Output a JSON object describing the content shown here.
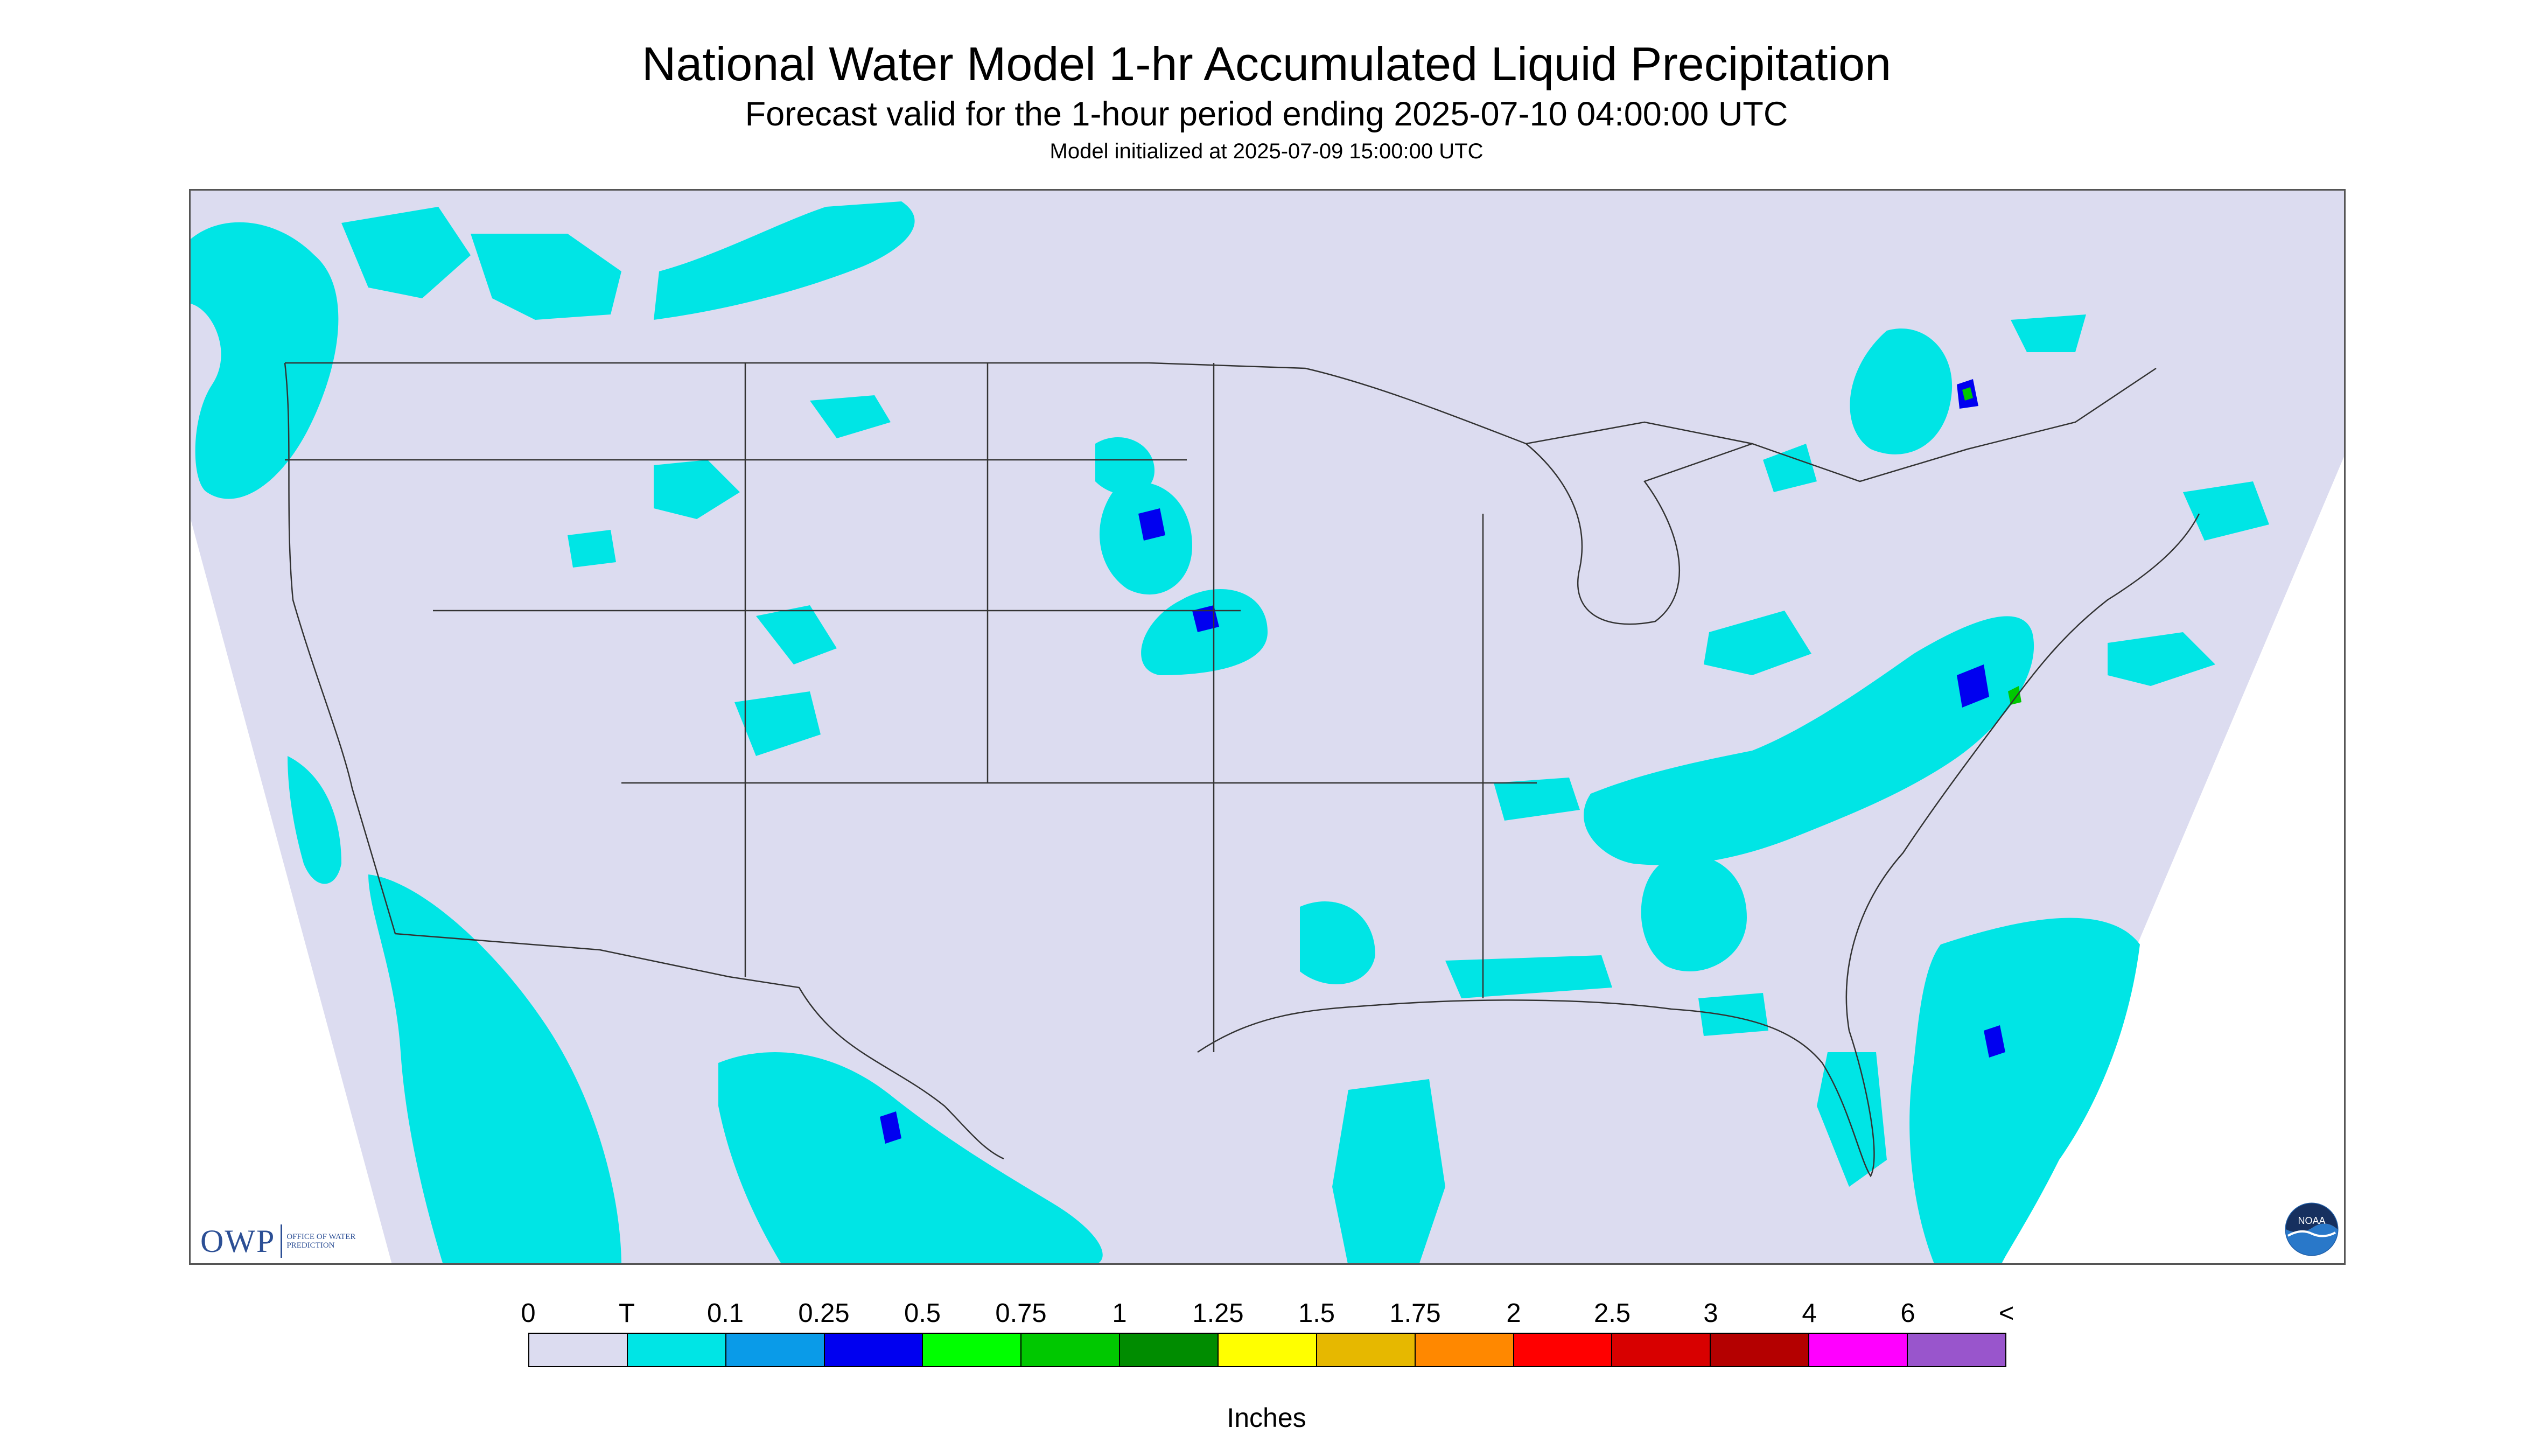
{
  "header": {
    "title": "National Water Model 1-hr Accumulated Liquid Precipitation",
    "subtitle": "Forecast valid for the 1-hour period ending 2025-07-10 04:00:00 UTC",
    "init_line": "Model initialized at 2025-07-09 15:00:00 UTC"
  },
  "logos": {
    "owp_letters": "OWP",
    "owp_subtext": "OFFICE OF WATER PREDICTION",
    "noaa_text": "NOAA"
  },
  "legend": {
    "labels": [
      "0",
      "T",
      "0.1",
      "0.25",
      "0.5",
      "0.75",
      "1",
      "1.25",
      "1.5",
      "1.75",
      "2",
      "2.5",
      "3",
      "4",
      "6",
      "<"
    ],
    "colors": [
      "#dcdcf0",
      "#00e5e5",
      "#0a9be8",
      "#0000f0",
      "#00ff00",
      "#00c800",
      "#008c00",
      "#ffff00",
      "#e6b800",
      "#ff8800",
      "#ff0000",
      "#d80000",
      "#b40000",
      "#ff00ff",
      "#9955cc"
    ],
    "units": "Inches"
  },
  "colors": {
    "map_background": "#dcdcf0",
    "outside_domain": "#ffffff",
    "trace": "#00e5e5",
    "light": "#0a9be8",
    "moderate": "#0000f0",
    "heavy": "#00c800",
    "boundary": "#333333"
  }
}
